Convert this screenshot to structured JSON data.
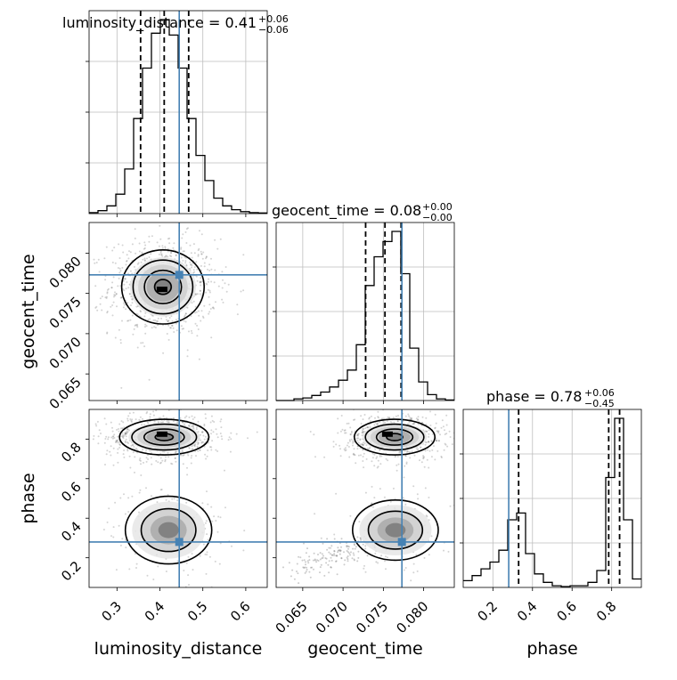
{
  "figure": {
    "type": "corner_plot",
    "parameters": [
      "luminosity_distance",
      "geocent_time",
      "phase"
    ],
    "colors": {
      "truth": "#4682b4",
      "hist": "#000000",
      "grid": "#bebebe"
    }
  },
  "titles": {
    "luminosity_distance": {
      "prefix": "luminosity_distance = 0.41",
      "sup": "+0.06",
      "sub": "−0.06"
    },
    "geocent_time": {
      "prefix": "geocent_time = 0.08",
      "sup": "+0.00",
      "sub": "−0.00"
    },
    "phase": {
      "prefix": "phase = 0.78",
      "sup": "+0.06",
      "sub": "−0.45"
    }
  },
  "axis_labels": {
    "x": [
      "luminosity_distance",
      "geocent_time",
      "phase"
    ],
    "y": [
      "geocent_time",
      "phase"
    ]
  },
  "chart_data": {
    "type": "corner",
    "truths": {
      "luminosity_distance": 0.445,
      "geocent_time": 0.0773,
      "phase": 0.28
    },
    "ranges": {
      "luminosity_distance": [
        0.235,
        0.65
      ],
      "geocent_time": [
        0.0617,
        0.0838
      ],
      "phase": [
        0.05,
        0.95
      ]
    },
    "ticks": {
      "luminosity_distance": [
        "0.3",
        "0.4",
        "0.5",
        "0.6"
      ],
      "geocent_time": [
        "0.065",
        "0.070",
        "0.075",
        "0.080"
      ],
      "phase": [
        "0.2",
        "0.4",
        "0.6",
        "0.8"
      ]
    },
    "quantiles": {
      "luminosity_distance": [
        0.355,
        0.41,
        0.467
      ],
      "geocent_time": [
        0.0728,
        0.0752,
        0.0772
      ],
      "phase": [
        0.33,
        0.785,
        0.84
      ]
    },
    "histograms": {
      "luminosity_distance": {
        "bin_edges": [
          0.235,
          0.2557,
          0.2765,
          0.2972,
          0.318,
          0.3387,
          0.3595,
          0.3802,
          0.401,
          0.4217,
          0.4425,
          0.4632,
          0.484,
          0.5047,
          0.5255,
          0.5462,
          0.567,
          0.5877,
          0.6085,
          0.6292,
          0.65
        ],
        "counts": [
          0.5,
          1.5,
          4,
          10,
          23,
          49,
          75,
          93,
          100,
          92,
          75,
          49,
          30,
          17,
          8,
          4,
          2,
          1,
          0.5,
          0.3
        ]
      },
      "geocent_time": {
        "bin_edges": [
          0.0617,
          0.06281,
          0.06391,
          0.06502,
          0.06612,
          0.06723,
          0.06833,
          0.06944,
          0.07054,
          0.07165,
          0.07275,
          0.07386,
          0.07496,
          0.07607,
          0.07717,
          0.07828,
          0.07938,
          0.08049,
          0.08159,
          0.0827,
          0.0838
        ],
        "counts": [
          0,
          0,
          1,
          1.5,
          3,
          5,
          8,
          12,
          18,
          33,
          68,
          85,
          94,
          100,
          75,
          31,
          11,
          3.5,
          1,
          0.3
        ]
      },
      "phase": {
        "bin_edges": [
          0.05,
          0.095,
          0.14,
          0.185,
          0.23,
          0.275,
          0.32,
          0.365,
          0.41,
          0.455,
          0.5,
          0.545,
          0.59,
          0.635,
          0.68,
          0.725,
          0.77,
          0.815,
          0.86,
          0.905,
          0.95
        ],
        "counts": [
          4,
          7,
          11,
          15,
          22,
          40,
          44,
          20,
          8,
          3,
          1,
          0.5,
          1,
          1,
          3,
          10,
          65,
          100,
          40,
          5
        ]
      }
    },
    "contours_2d": [
      {
        "x": "luminosity_distance",
        "y": "geocent_time",
        "modes": [
          {
            "center": [
              0.407,
              0.0758
            ],
            "sigma": [
              0.048,
              0.0023
            ]
          }
        ],
        "peak": [
          0.405,
          0.0755
        ]
      },
      {
        "x": "luminosity_distance",
        "y": "phase",
        "modes": [
          {
            "center": [
              0.41,
              0.81
            ],
            "sigma": [
              0.052,
              0.045
            ],
            "weight": 0.8
          },
          {
            "center": [
              0.42,
              0.34
            ],
            "sigma": [
              0.053,
              0.09
            ],
            "weight": 0.2
          }
        ],
        "peak": [
          0.405,
          0.825
        ]
      },
      {
        "x": "geocent_time",
        "y": "phase",
        "modes": [
          {
            "center": [
              0.0764,
              0.81
            ],
            "sigma": [
              0.0025,
              0.045
            ],
            "weight": 0.8
          },
          {
            "center": [
              0.0765,
              0.34
            ],
            "sigma": [
              0.0028,
              0.08
            ],
            "weight": 0.2
          }
        ],
        "tail": {
          "from": [
            0.0648,
            0.15
          ],
          "to": [
            0.074,
            0.28
          ]
        },
        "peak": [
          0.0755,
          0.825
        ]
      }
    ]
  }
}
